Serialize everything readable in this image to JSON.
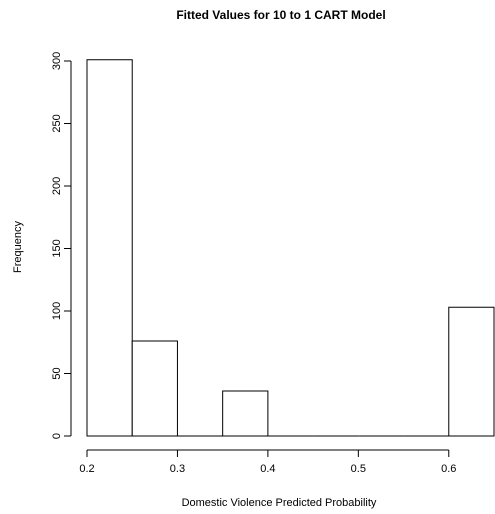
{
  "chart_data": {
    "type": "bar",
    "subtype": "histogram",
    "title": "Fitted Values for 10 to 1 CART Model",
    "xlabel": "Domestic Violence Predicted Probability",
    "ylabel": "Frequency",
    "xlim": [
      0.2,
      0.65
    ],
    "ylim": [
      0,
      300
    ],
    "x_ticks": [
      "0.2",
      "0.3",
      "0.4",
      "0.5",
      "0.6"
    ],
    "x_tick_values": [
      0.2,
      0.3,
      0.4,
      0.5,
      0.6
    ],
    "y_ticks": [
      "0",
      "50",
      "100",
      "150",
      "200",
      "250",
      "300"
    ],
    "y_tick_values": [
      0,
      50,
      100,
      150,
      200,
      250,
      300
    ],
    "bins": [
      {
        "x0": 0.2,
        "x1": 0.25,
        "count": 301
      },
      {
        "x0": 0.25,
        "x1": 0.3,
        "count": 76
      },
      {
        "x0": 0.3,
        "x1": 0.35,
        "count": 0
      },
      {
        "x0": 0.35,
        "x1": 0.4,
        "count": 36
      },
      {
        "x0": 0.4,
        "x1": 0.45,
        "count": 0
      },
      {
        "x0": 0.45,
        "x1": 0.5,
        "count": 0
      },
      {
        "x0": 0.5,
        "x1": 0.55,
        "count": 0
      },
      {
        "x0": 0.55,
        "x1": 0.6,
        "count": 0
      },
      {
        "x0": 0.6,
        "x1": 0.65,
        "count": 103
      }
    ],
    "colors": {
      "bar_fill": "#ffffff",
      "bar_stroke": "#000000"
    },
    "grid": false,
    "legend": "none"
  }
}
